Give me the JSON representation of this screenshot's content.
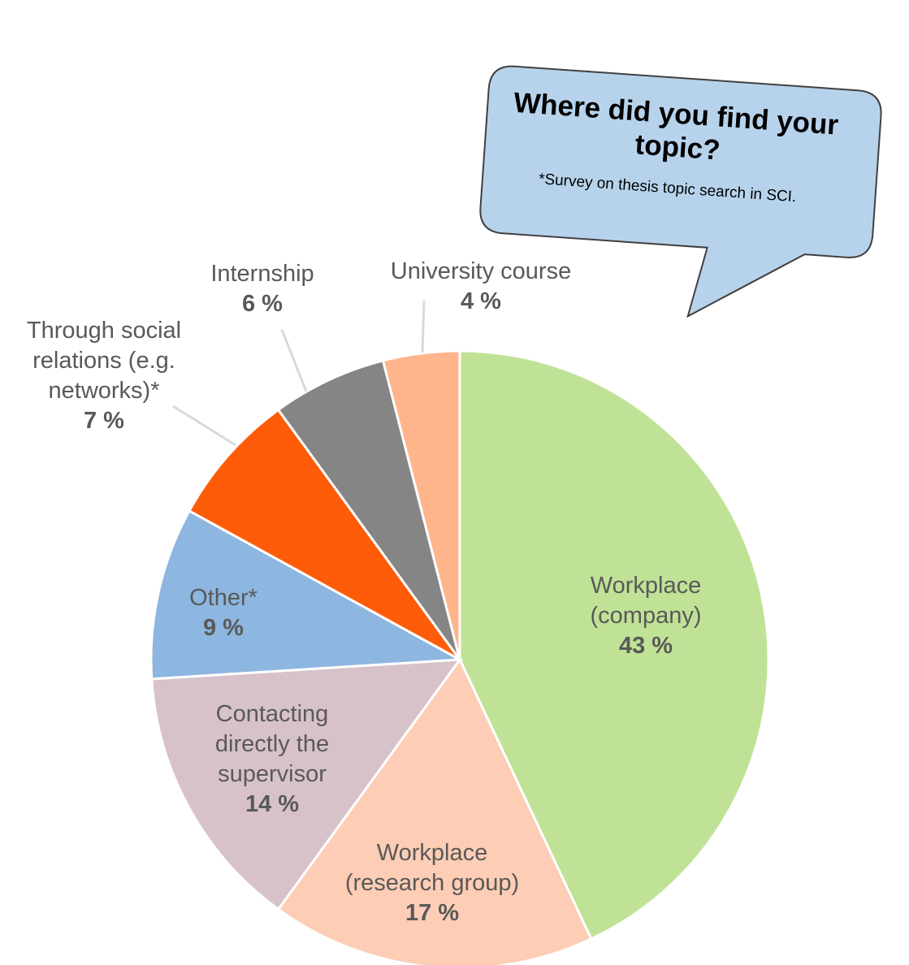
{
  "chart_data": {
    "type": "pie",
    "title": "Where did you find your topic?",
    "note": "*Survey on thesis topic search in SCI.",
    "unit": "%",
    "slices": [
      {
        "key": "workplace-company",
        "lines": [
          "Workplace",
          "(company)"
        ],
        "value": 43,
        "pct_label": "43 %",
        "color": "#c0e296"
      },
      {
        "key": "workplace-research-group",
        "lines": [
          "Workplace",
          "(research group)"
        ],
        "value": 17,
        "pct_label": "17 %",
        "color": "#fdcdb5"
      },
      {
        "key": "contacting-supervisor",
        "lines": [
          "Contacting",
          "directly the",
          "supervisor"
        ],
        "value": 14,
        "pct_label": "14 %",
        "color": "#d8c2ca"
      },
      {
        "key": "other",
        "lines": [
          "Other*"
        ],
        "value": 9,
        "pct_label": "9 %",
        "color": "#8db6e0"
      },
      {
        "key": "social-relations",
        "lines": [
          "Through social",
          "relations (e.g.",
          "networks)*"
        ],
        "value": 7,
        "pct_label": "7 %",
        "color": "#ff5c0a"
      },
      {
        "key": "internship",
        "lines": [
          "Internship"
        ],
        "value": 6,
        "pct_label": "6 %",
        "color": "#858585"
      },
      {
        "key": "university-course",
        "lines": [
          "University course"
        ],
        "value": 4,
        "pct_label": "4 %",
        "color": "#ffb58c"
      }
    ]
  }
}
